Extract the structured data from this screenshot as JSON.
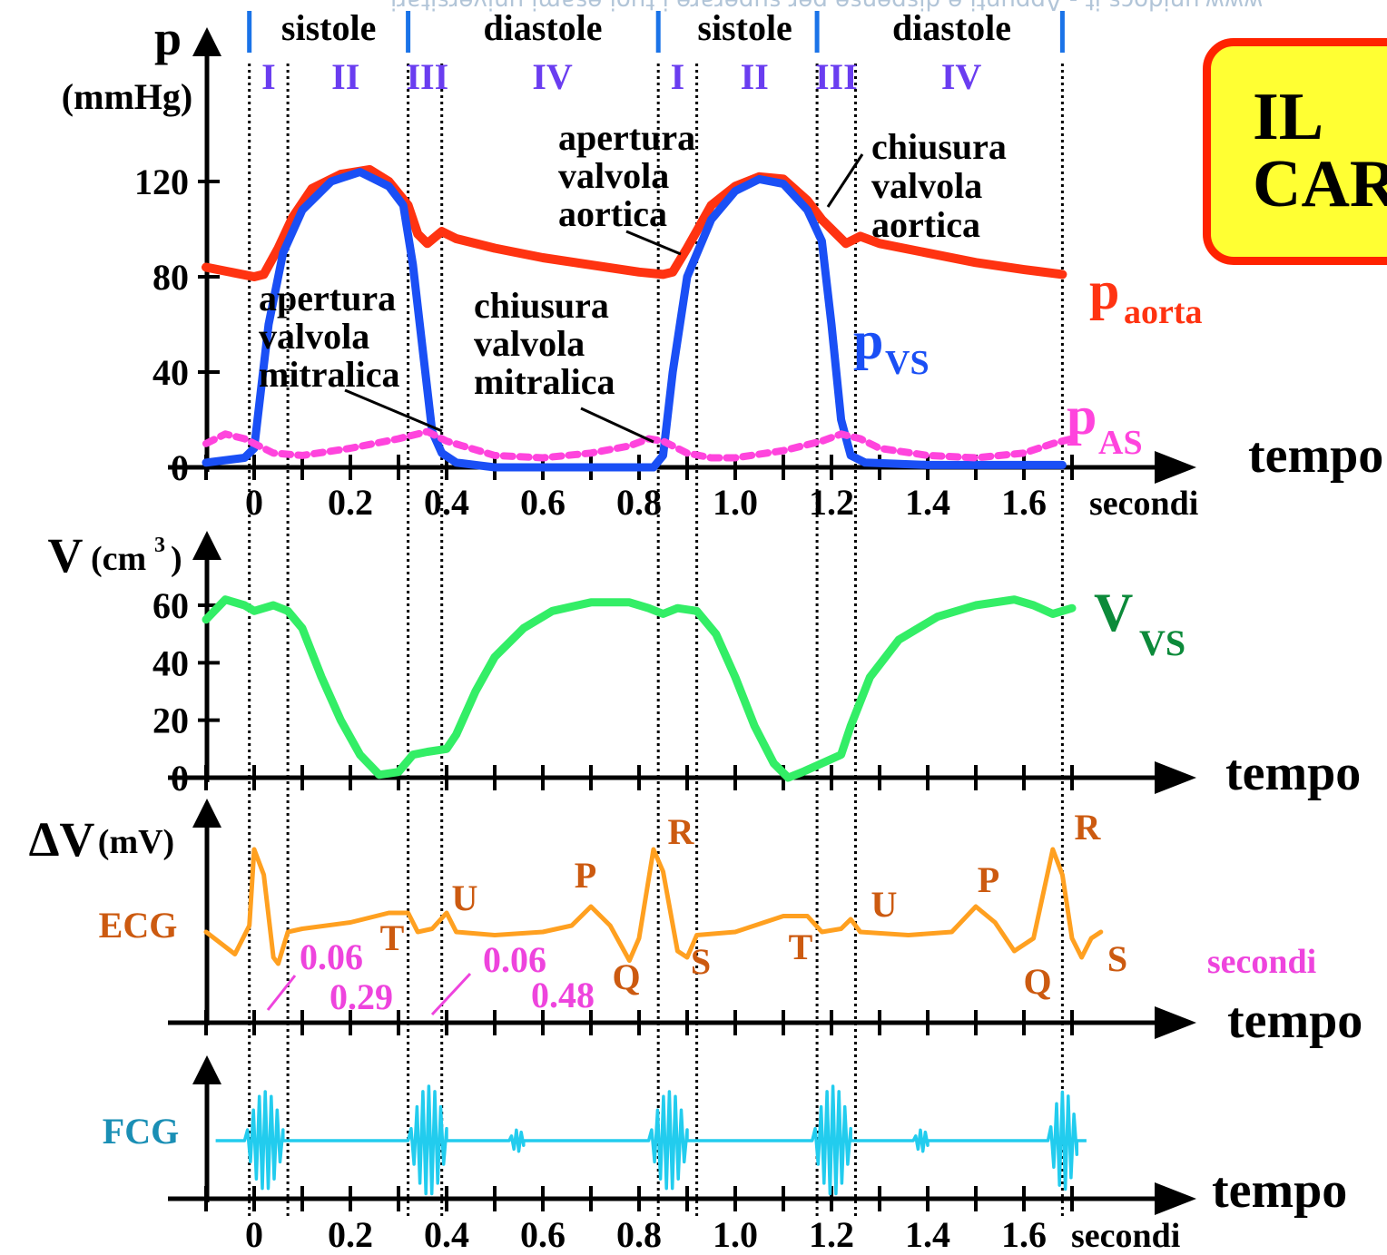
{
  "watermark": "www.unidocs.it  -  Appunti e dispense per superare i tuoi esami universitari",
  "title_box": {
    "text": "IL\nCAR",
    "bg_color": "#ffff33",
    "border_color": "#ff2200"
  },
  "phases": {
    "labels": [
      "sistole",
      "diastole",
      "sistole",
      "diastole"
    ],
    "roman": [
      "I",
      "II",
      "III",
      "IV",
      "I",
      "II",
      "III",
      "IV"
    ],
    "marker_color": "#1a73e8",
    "roman_color": "#6a3df0"
  },
  "chart_data": [
    {
      "type": "line",
      "name": "pressure",
      "ylabel": "p",
      "yunit": "(mmHg)",
      "xlabel": "tempo",
      "xunit": "secondi",
      "ylim": [
        0,
        140
      ],
      "xlim": [
        -0.1,
        1.85
      ],
      "yticks": [
        "0",
        "40",
        "80",
        "120"
      ],
      "yticks_values": [
        0,
        40,
        80,
        120
      ],
      "xticks": [
        "0",
        "0.2",
        "0.4",
        "0.6",
        "0.8",
        "1.0",
        "1.2",
        "1.4",
        "1.6"
      ],
      "xticks_values": [
        0,
        0.2,
        0.4,
        0.6,
        0.8,
        1.0,
        1.2,
        1.4,
        1.6
      ],
      "series": [
        {
          "name": "p",
          "subscript": "aorta",
          "color": "#ff3311",
          "style": "solid",
          "points": [
            [
              -0.1,
              84
            ],
            [
              0,
              80
            ],
            [
              0.02,
              81
            ],
            [
              0.05,
              92
            ],
            [
              0.08,
              105
            ],
            [
              0.12,
              117
            ],
            [
              0.18,
              123
            ],
            [
              0.24,
              125
            ],
            [
              0.28,
              120
            ],
            [
              0.32,
              110
            ],
            [
              0.34,
              98
            ],
            [
              0.36,
              94
            ],
            [
              0.39,
              99
            ],
            [
              0.42,
              96
            ],
            [
              0.5,
              92
            ],
            [
              0.6,
              88
            ],
            [
              0.7,
              85
            ],
            [
              0.8,
              82
            ],
            [
              0.85,
              81
            ],
            [
              0.87,
              82
            ],
            [
              0.9,
              92
            ],
            [
              0.95,
              110
            ],
            [
              1.0,
              118
            ],
            [
              1.05,
              122
            ],
            [
              1.1,
              121
            ],
            [
              1.15,
              112
            ],
            [
              1.18,
              104
            ],
            [
              1.21,
              98
            ],
            [
              1.23,
              94
            ],
            [
              1.26,
              97
            ],
            [
              1.3,
              94
            ],
            [
              1.4,
              90
            ],
            [
              1.5,
              86
            ],
            [
              1.6,
              83
            ],
            [
              1.68,
              81
            ]
          ]
        },
        {
          "name": "p",
          "subscript": "VS",
          "color": "#1a4ff5",
          "style": "solid",
          "points": [
            [
              -0.1,
              2
            ],
            [
              -0.02,
              4
            ],
            [
              0,
              8
            ],
            [
              0.03,
              60
            ],
            [
              0.06,
              90
            ],
            [
              0.1,
              108
            ],
            [
              0.16,
              120
            ],
            [
              0.22,
              124
            ],
            [
              0.28,
              118
            ],
            [
              0.31,
              110
            ],
            [
              0.33,
              85
            ],
            [
              0.35,
              50
            ],
            [
              0.37,
              15
            ],
            [
              0.39,
              6
            ],
            [
              0.42,
              2
            ],
            [
              0.5,
              0
            ],
            [
              0.6,
              0
            ],
            [
              0.7,
              0
            ],
            [
              0.8,
              0
            ],
            [
              0.83,
              0
            ],
            [
              0.85,
              5
            ],
            [
              0.87,
              40
            ],
            [
              0.9,
              80
            ],
            [
              0.95,
              104
            ],
            [
              1.0,
              116
            ],
            [
              1.05,
              121
            ],
            [
              1.1,
              119
            ],
            [
              1.15,
              108
            ],
            [
              1.18,
              95
            ],
            [
              1.2,
              60
            ],
            [
              1.22,
              20
            ],
            [
              1.24,
              5
            ],
            [
              1.27,
              2
            ],
            [
              1.4,
              1
            ],
            [
              1.5,
              1
            ],
            [
              1.6,
              1
            ],
            [
              1.68,
              1
            ]
          ]
        },
        {
          "name": "p",
          "subscript": "AS",
          "color": "#ff44dd",
          "style": "dashed",
          "points": [
            [
              -0.1,
              10
            ],
            [
              -0.06,
              14
            ],
            [
              -0.02,
              12
            ],
            [
              0,
              10
            ],
            [
              0.04,
              6
            ],
            [
              0.1,
              5
            ],
            [
              0.2,
              8
            ],
            [
              0.3,
              12
            ],
            [
              0.36,
              15
            ],
            [
              0.4,
              11
            ],
            [
              0.5,
              5
            ],
            [
              0.6,
              4
            ],
            [
              0.7,
              6
            ],
            [
              0.78,
              9
            ],
            [
              0.82,
              12
            ],
            [
              0.85,
              11
            ],
            [
              0.9,
              6
            ],
            [
              0.95,
              4
            ],
            [
              1.0,
              4
            ],
            [
              1.1,
              7
            ],
            [
              1.18,
              11
            ],
            [
              1.22,
              14
            ],
            [
              1.26,
              12
            ],
            [
              1.3,
              8
            ],
            [
              1.4,
              5
            ],
            [
              1.5,
              4
            ],
            [
              1.6,
              6
            ],
            [
              1.66,
              10
            ],
            [
              1.7,
              12
            ]
          ]
        }
      ],
      "annotations": [
        {
          "text": "apertura valvola aortica"
        },
        {
          "text": "chiusura valvola aortica"
        },
        {
          "text": "apertura valvola mitralica"
        },
        {
          "text": "chiusura valvola mitralica"
        }
      ]
    },
    {
      "type": "line",
      "name": "volume",
      "ylabel": "V",
      "yunit": "(cm",
      "yunit_sup": "3",
      "yunit_close": ")",
      "xlabel": "tempo",
      "ylim": [
        0,
        70
      ],
      "yticks": [
        "0",
        "20",
        "40",
        "60"
      ],
      "yticks_values": [
        0,
        20,
        40,
        60
      ],
      "series": [
        {
          "name": "V",
          "subscript": "VS",
          "color": "#33ee66",
          "label_color": "#0c8a3a",
          "style": "solid",
          "points": [
            [
              -0.1,
              55
            ],
            [
              -0.06,
              62
            ],
            [
              -0.02,
              60
            ],
            [
              0,
              58
            ],
            [
              0.04,
              60
            ],
            [
              0.07,
              58
            ],
            [
              0.1,
              52
            ],
            [
              0.14,
              35
            ],
            [
              0.18,
              20
            ],
            [
              0.22,
              8
            ],
            [
              0.26,
              1
            ],
            [
              0.3,
              2
            ],
            [
              0.33,
              8
            ],
            [
              0.36,
              9
            ],
            [
              0.4,
              10
            ],
            [
              0.42,
              15
            ],
            [
              0.46,
              30
            ],
            [
              0.5,
              42
            ],
            [
              0.56,
              52
            ],
            [
              0.62,
              58
            ],
            [
              0.7,
              61
            ],
            [
              0.78,
              61
            ],
            [
              0.82,
              59
            ],
            [
              0.85,
              57
            ],
            [
              0.88,
              59
            ],
            [
              0.92,
              58
            ],
            [
              0.96,
              50
            ],
            [
              1.0,
              35
            ],
            [
              1.04,
              18
            ],
            [
              1.08,
              5
            ],
            [
              1.11,
              0
            ],
            [
              1.14,
              2
            ],
            [
              1.18,
              5
            ],
            [
              1.22,
              8
            ],
            [
              1.24,
              18
            ],
            [
              1.28,
              35
            ],
            [
              1.34,
              48
            ],
            [
              1.42,
              56
            ],
            [
              1.5,
              60
            ],
            [
              1.58,
              62
            ],
            [
              1.62,
              60
            ],
            [
              1.66,
              57
            ],
            [
              1.7,
              59
            ]
          ]
        }
      ]
    },
    {
      "type": "line",
      "name": "ecg",
      "ylabel": "ΔV",
      "yunit": "(mV)",
      "series_label": "ECG",
      "xlabel": "tempo",
      "color": "#ffa020",
      "label_color": "#cc5a10",
      "ylim": [
        -1.4,
        1.8
      ],
      "series": [
        {
          "name": "ECG",
          "color": "#ffa020",
          "points": [
            [
              -0.1,
              0.0
            ],
            [
              -0.04,
              -0.35
            ],
            [
              -0.01,
              0.1
            ],
            [
              0,
              1.3
            ],
            [
              0.02,
              0.9
            ],
            [
              0.04,
              -0.4
            ],
            [
              0.05,
              -0.5
            ],
            [
              0.07,
              0.0
            ],
            [
              0.1,
              0.05
            ],
            [
              0.2,
              0.15
            ],
            [
              0.28,
              0.3
            ],
            [
              0.32,
              0.3
            ],
            [
              0.34,
              0.0
            ],
            [
              0.37,
              0.05
            ],
            [
              0.4,
              0.3
            ],
            [
              0.42,
              0.0
            ],
            [
              0.5,
              -0.05
            ],
            [
              0.6,
              0.0
            ],
            [
              0.66,
              0.1
            ],
            [
              0.7,
              0.4
            ],
            [
              0.74,
              0.1
            ],
            [
              0.78,
              -0.45
            ],
            [
              0.8,
              -0.1
            ],
            [
              0.83,
              1.3
            ],
            [
              0.85,
              0.95
            ],
            [
              0.88,
              -0.3
            ],
            [
              0.9,
              -0.4
            ],
            [
              0.92,
              -0.05
            ],
            [
              1.0,
              0.0
            ],
            [
              1.1,
              0.25
            ],
            [
              1.15,
              0.25
            ],
            [
              1.18,
              0.0
            ],
            [
              1.22,
              0.05
            ],
            [
              1.24,
              0.2
            ],
            [
              1.26,
              0.0
            ],
            [
              1.36,
              -0.05
            ],
            [
              1.45,
              0.0
            ],
            [
              1.5,
              0.4
            ],
            [
              1.54,
              0.15
            ],
            [
              1.58,
              -0.3
            ],
            [
              1.62,
              -0.1
            ],
            [
              1.66,
              1.3
            ],
            [
              1.68,
              0.9
            ],
            [
              1.7,
              -0.1
            ],
            [
              1.72,
              -0.4
            ],
            [
              1.74,
              -0.1
            ],
            [
              1.76,
              0.0
            ]
          ]
        }
      ],
      "wave_labels": [
        "R",
        "P",
        "U",
        "T",
        "Q",
        "S",
        "R",
        "U",
        "P",
        "T",
        "Q",
        "S"
      ],
      "intervals": [
        {
          "top": "0.06",
          "bottom": "0.29"
        },
        {
          "top": "0.06",
          "bottom": "0.48"
        }
      ],
      "interval_unit": "secondi",
      "interval_color": "#ee44dd"
    },
    {
      "type": "line",
      "name": "fcg",
      "series_label": "FCG",
      "label_color": "#1a8fb5",
      "xlabel": "tempo",
      "xunit": "secondi",
      "xticks": [
        "0",
        "0.2",
        "0.4",
        "0.6",
        "0.8",
        "1.0",
        "1.2",
        "1.4",
        "1.6"
      ],
      "xticks_values": [
        0,
        0.2,
        0.4,
        0.6,
        0.8,
        1.0,
        1.2,
        1.4,
        1.6
      ],
      "color": "#22ccee",
      "bursts": [
        {
          "t": -0.02,
          "amp": 0.9,
          "width": 0.08
        },
        {
          "t": 0.32,
          "amp": 1.0,
          "width": 0.08
        },
        {
          "t": 0.53,
          "amp": 0.2,
          "width": 0.03
        },
        {
          "t": 0.82,
          "amp": 0.9,
          "width": 0.08
        },
        {
          "t": 1.16,
          "amp": 1.0,
          "width": 0.08
        },
        {
          "t": 1.37,
          "amp": 0.2,
          "width": 0.03
        },
        {
          "t": 1.65,
          "amp": 0.9,
          "width": 0.06
        }
      ]
    }
  ],
  "dividers_time": [
    -0.01,
    0.07,
    0.32,
    0.39,
    0.84,
    0.92,
    1.17,
    1.25,
    1.68
  ]
}
